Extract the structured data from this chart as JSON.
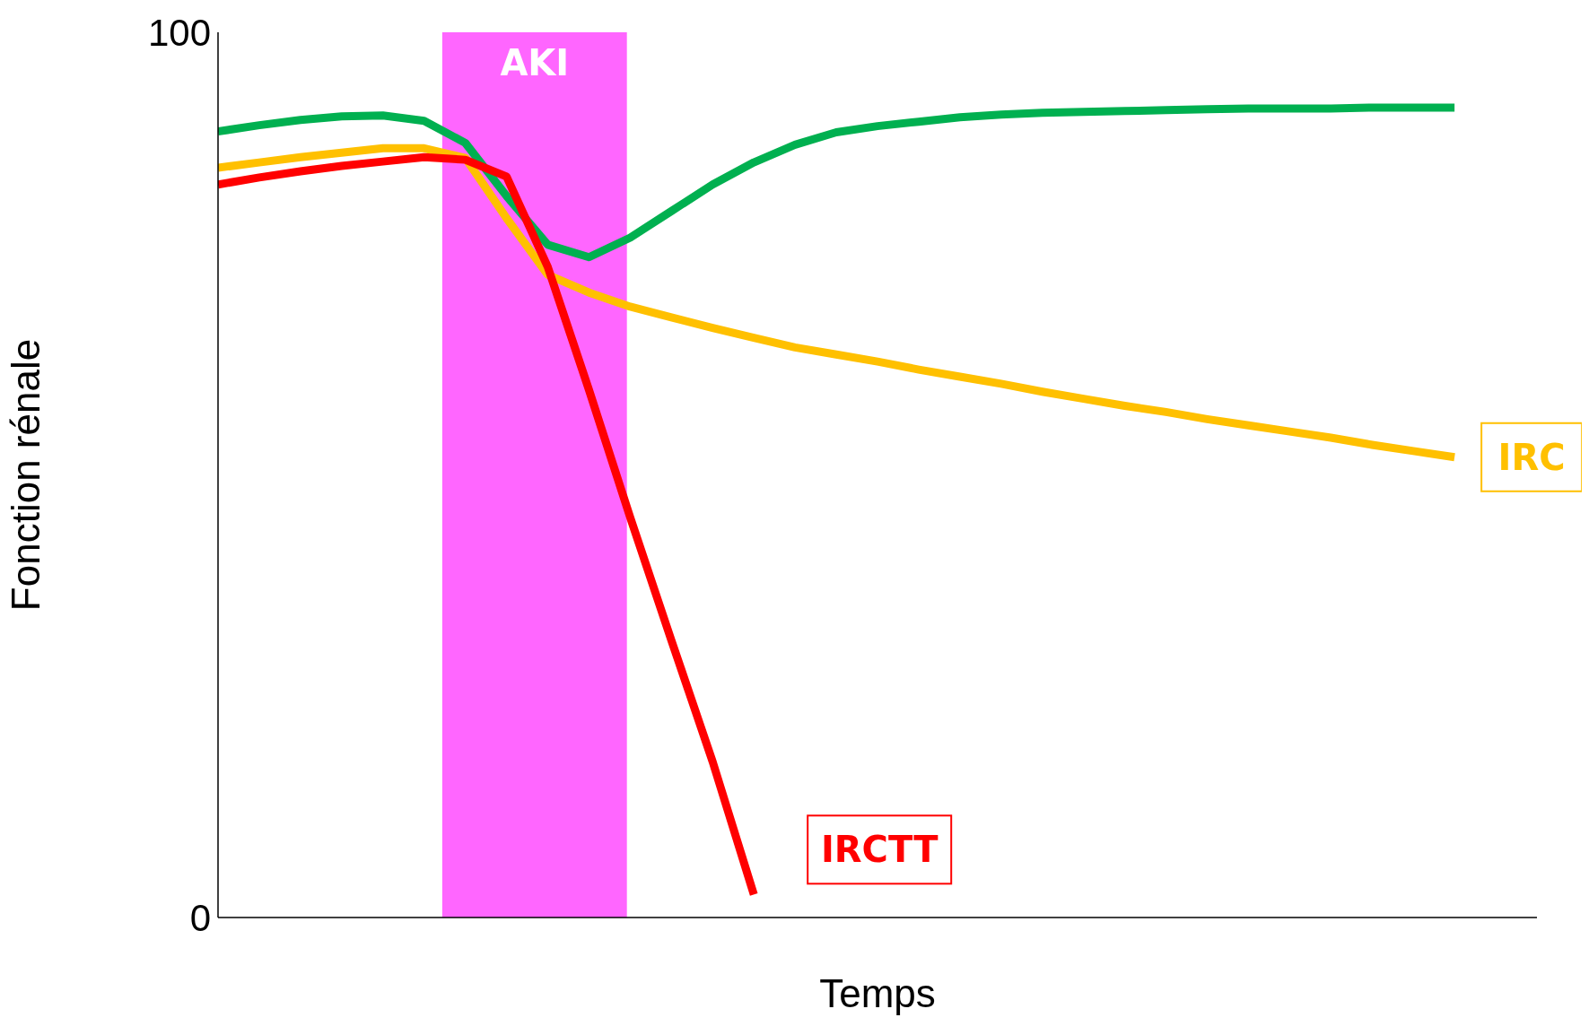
{
  "chart_data": {
    "type": "line",
    "xlabel": "Temps",
    "ylabel": "Fonction rénale",
    "categories": [
      null,
      null,
      null,
      null,
      null,
      null,
      null,
      null,
      null,
      null,
      null,
      null,
      null,
      null,
      null,
      null,
      null,
      null,
      null,
      null,
      null,
      null,
      null,
      null,
      null,
      null,
      null,
      null,
      null,
      null,
      null,
      null,
      null
    ],
    "ylim": [
      0,
      100
    ],
    "yticks": [
      0,
      100
    ],
    "annotations": [
      "AKI"
    ],
    "series": [
      {
        "color": "#00b050",
        "values": [
          88.8,
          89.5,
          90.1,
          90.5,
          90.6,
          90.0,
          87.5,
          81.5,
          76.0,
          74.6,
          76.8,
          79.8,
          82.8,
          85.3,
          87.3,
          88.7,
          89.4,
          89.9,
          90.4,
          90.7,
          90.9,
          91.0,
          91.1,
          91.2,
          91.3,
          91.4,
          91.4,
          91.4,
          91.5,
          91.5,
          91.5,
          null,
          null
        ]
      },
      {
        "name": "IRC",
        "color": "#ffc000",
        "values": [
          84.7,
          85.3,
          85.9,
          86.4,
          86.9,
          86.9,
          85.8,
          79.0,
          72.6,
          70.6,
          69.0,
          67.8,
          66.6,
          65.5,
          64.4,
          63.6,
          62.8,
          61.9,
          61.1,
          60.3,
          59.4,
          58.6,
          57.8,
          57.1,
          56.3,
          55.6,
          54.9,
          54.2,
          53.4,
          52.7,
          52.0,
          null,
          null
        ]
      },
      {
        "name": "IRCTT",
        "color": "#ff0000",
        "values": [
          82.8,
          83.6,
          84.3,
          84.9,
          85.4,
          85.9,
          85.6,
          83.7,
          73.5,
          59.6,
          45.2,
          31.3,
          17.6,
          2.6,
          null,
          null,
          null,
          null,
          null,
          null,
          null,
          null,
          null,
          null,
          null,
          null,
          null,
          null,
          null,
          null,
          null,
          null,
          null
        ]
      }
    ]
  }
}
